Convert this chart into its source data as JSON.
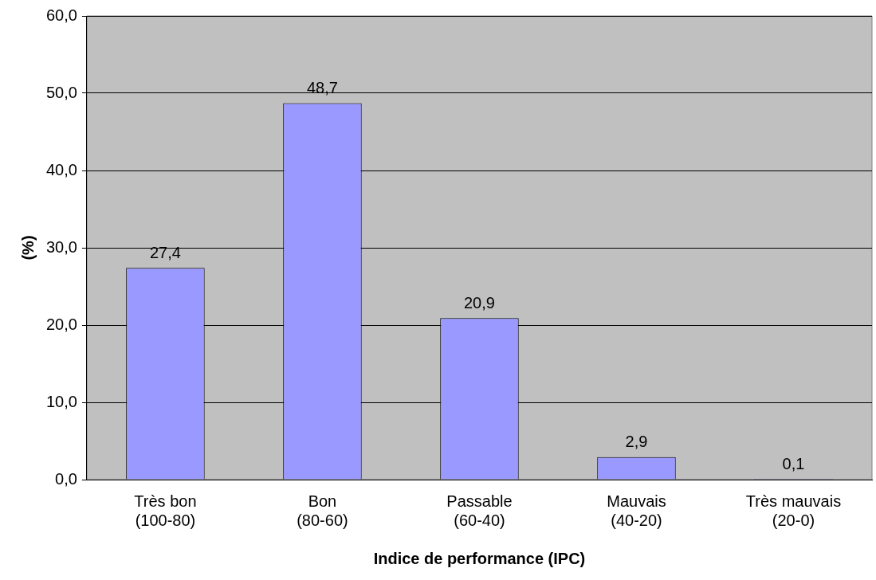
{
  "chart_data": {
    "type": "bar",
    "xlabel": "Indice de performance (IPC)",
    "ylabel": "(%)",
    "categories": [
      "Très bon\n(100-80)",
      "Bon\n(80-60)",
      "Passable\n(60-40)",
      "Mauvais\n(40-20)",
      "Très mauvais\n(20-0)"
    ],
    "values": [
      27.4,
      48.7,
      20.9,
      2.9,
      0.1
    ],
    "color": "#9999ff",
    "value_labels": [
      "27,4",
      "48,7",
      "20,9",
      "2,9",
      "0,1"
    ],
    "ylim": [
      0,
      60
    ],
    "yticks": [
      {
        "value": 0,
        "label": "0,0"
      },
      {
        "value": 10,
        "label": "10,0"
      },
      {
        "value": 20,
        "label": "20,0"
      },
      {
        "value": 30,
        "label": "30,0"
      },
      {
        "value": 40,
        "label": "40,0"
      },
      {
        "value": 50,
        "label": "50,0"
      },
      {
        "value": 60,
        "label": "60,0"
      }
    ],
    "grid": "y",
    "legend": false
  }
}
